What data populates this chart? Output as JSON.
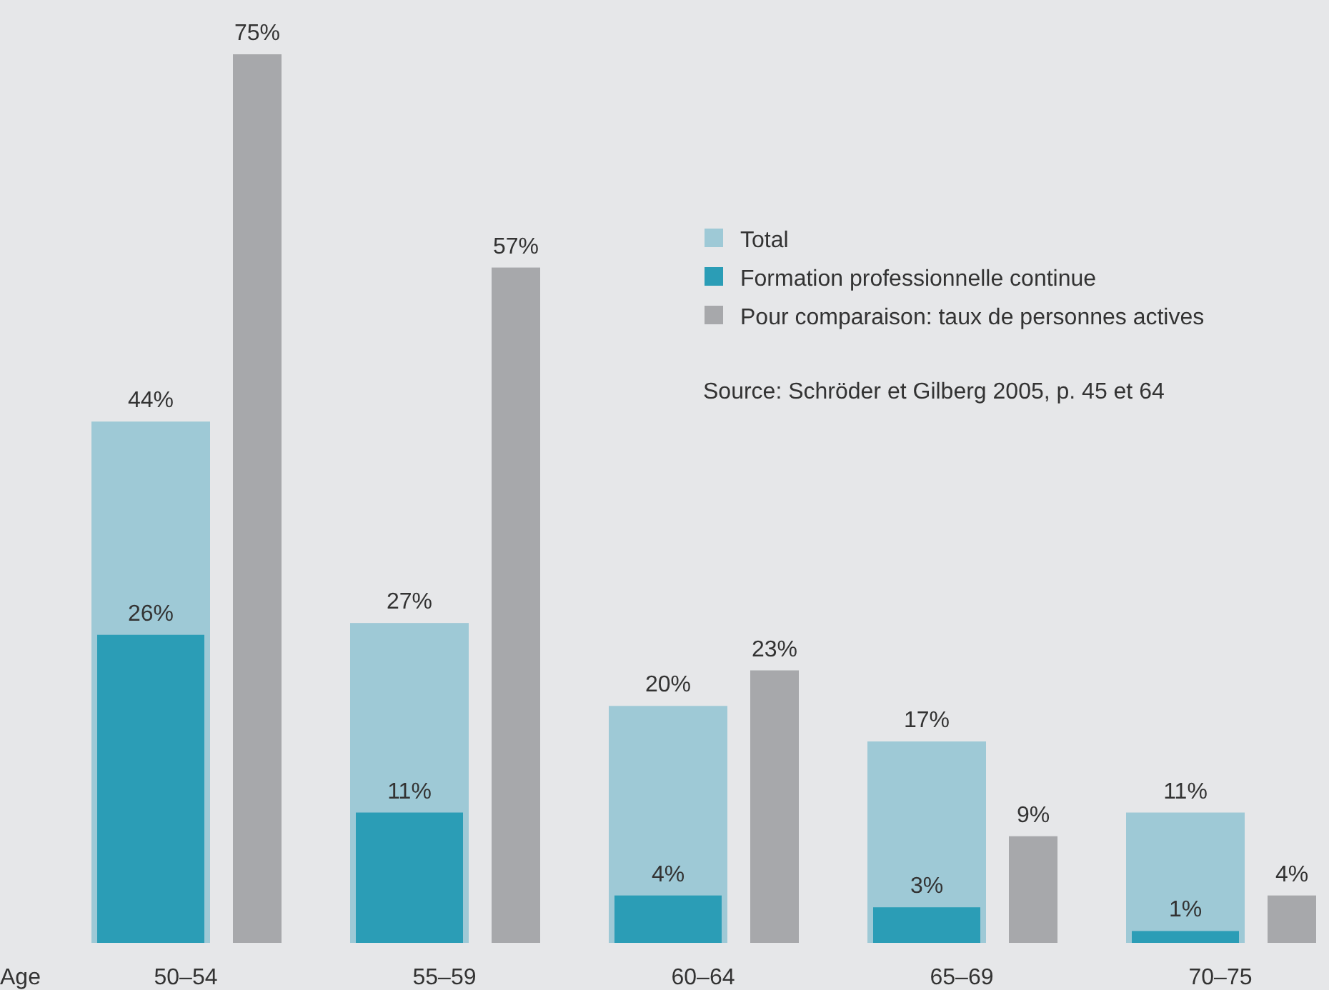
{
  "chart_data": {
    "type": "bar",
    "xlabel": "Age",
    "categories": [
      "50–54",
      "55–59",
      "60–64",
      "65–69",
      "70–75"
    ],
    "series": [
      {
        "name": "Total",
        "color": "#9ec9d6",
        "values": [
          44,
          27,
          20,
          17,
          11
        ],
        "value_labels": [
          "44%",
          "27%",
          "20%",
          "17%",
          "11%"
        ]
      },
      {
        "name": "Formation professionnelle continue",
        "color": "#2b9db6",
        "values": [
          26,
          11,
          4,
          3,
          1
        ],
        "value_labels": [
          "26%",
          "11%",
          "4%",
          "3%",
          "1%"
        ]
      },
      {
        "name": "Pour comparaison: taux de personnes actives",
        "color": "#a7a8ab",
        "values": [
          75,
          57,
          23,
          9,
          4
        ],
        "value_labels": [
          "75%",
          "57%",
          "23%",
          "9%",
          "4%"
        ]
      }
    ],
    "legend": "top right",
    "annotations": [
      "Source: Schröder et Gilberg 2005, p. 45 et 64"
    ]
  }
}
